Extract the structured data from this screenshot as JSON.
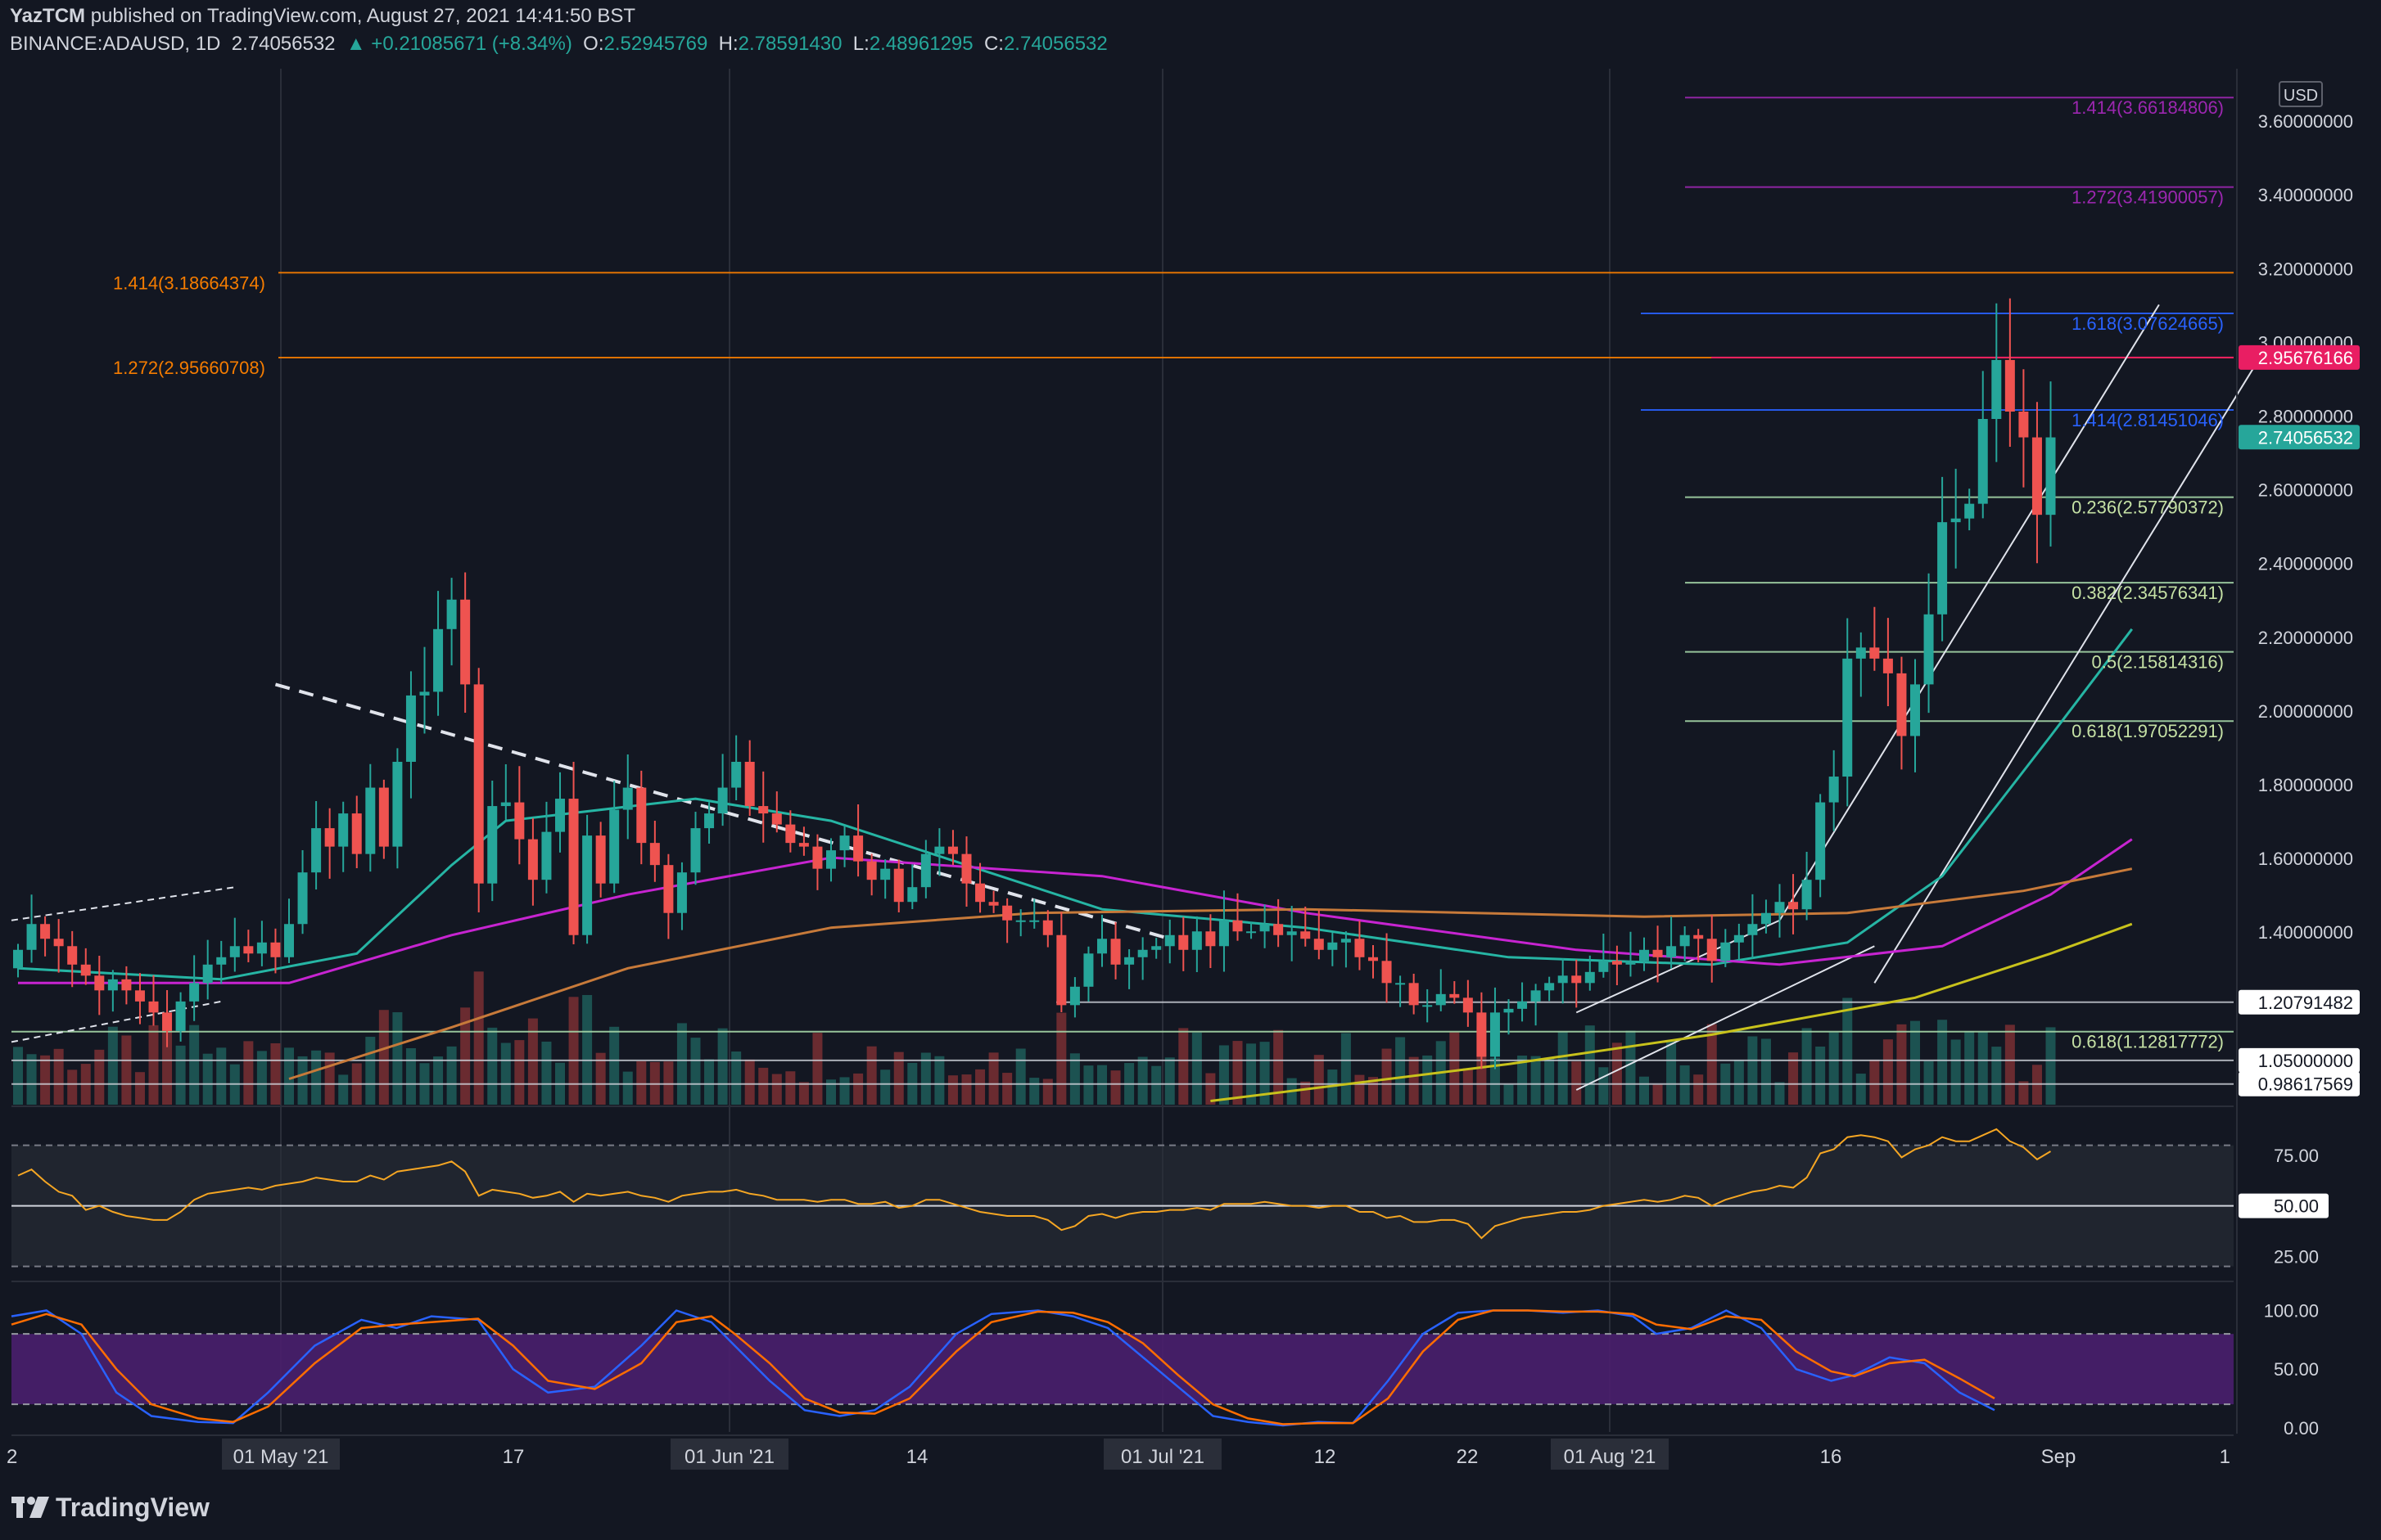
{
  "header": {
    "author": "YazTCM",
    "published": "published on TradingView.com, August 27, 2021 14:41:50 BST",
    "symbol": "BINANCE:ADAUSD, 1D",
    "last": "2.74056532",
    "change": "▲ +0.21085671 (+8.34%)",
    "o_label": "O:",
    "o": "2.52945769",
    "h_label": "H:",
    "h": "2.78591430",
    "l_label": "L:",
    "l": "2.48961295",
    "c_label": "C:",
    "c": "2.74056532"
  },
  "brand": "TradingView",
  "colors": {
    "background": "#131722",
    "up": "#26a69a",
    "down": "#ef5350",
    "ema20": "#26b5a4",
    "ema50": "#c724d1",
    "ema100": "#c77a3a",
    "ema200": "#c8c21c",
    "fib_ext_orange": "#f57c00",
    "fib_ext_purple": "#9c27b0",
    "fib_ext_blue": "#2962ff",
    "fib_retrace": "#a5d6a7",
    "rsi": "#f5a623",
    "stoch_k": "#2962ff",
    "stoch_d": "#ff6d00",
    "stoch_band": "#4a1f6e"
  },
  "chart_data": [
    {
      "type": "candlestick",
      "title": "ADAUSD 1D",
      "y_axis_unit": "USD",
      "ylim": [
        0.93,
        3.74
      ],
      "y_ticks": [
        "3.60000000",
        "3.40000000",
        "3.20000000",
        "3.00000000",
        "2.80000000",
        "2.60000000",
        "2.40000000",
        "2.20000000",
        "2.00000000",
        "1.80000000",
        "1.60000000",
        "1.40000000"
      ],
      "x_ticks": [
        "01 May '21",
        "17",
        "01 Jun '21",
        "14",
        "01 Jul '21",
        "12",
        "22",
        "01 Aug '21",
        "16",
        "Sep"
      ],
      "x_ticks_partial": [
        "2",
        "1"
      ],
      "price_labels": [
        {
          "text": "2.95676166",
          "value": 2.95676166,
          "style": "magenta"
        },
        {
          "text": "2.74056532",
          "value": 2.74056532,
          "style": "green"
        },
        {
          "text": "1.20791482",
          "value": 1.20791482,
          "style": "white"
        },
        {
          "text": "1.05000000",
          "value": 1.05,
          "style": "white"
        },
        {
          "text": "0.98617569",
          "value": 0.98617569,
          "style": "white"
        }
      ],
      "fib_levels": [
        {
          "label": "1.414(3.66184806)",
          "value": 3.66184806,
          "color": "purple"
        },
        {
          "label": "1.272(3.41900057)",
          "value": 3.41900057,
          "color": "purple"
        },
        {
          "label": "1.414(3.18664374)",
          "value": 3.18664374,
          "color": "orange"
        },
        {
          "label": "1.618(3.07624665)",
          "value": 3.07624665,
          "color": "blue"
        },
        {
          "label": "1.272(2.95660708)",
          "value": 2.95660708,
          "color": "orange"
        },
        {
          "label": "1.414(2.81451046)",
          "value": 2.81451046,
          "color": "blue"
        },
        {
          "label": "0.236(2.57790372)",
          "value": 2.57790372,
          "color": "green"
        },
        {
          "label": "0.382(2.34576341)",
          "value": 2.34576341,
          "color": "green"
        },
        {
          "label": "0.5(2.15814316)",
          "value": 2.15814316,
          "color": "green"
        },
        {
          "label": "0.618(1.97052291)",
          "value": 1.97052291,
          "color": "green"
        },
        {
          "label": "0.618(1.12817772)",
          "value": 1.12817772,
          "color": "green"
        }
      ],
      "closes": [
        1.35,
        1.42,
        1.38,
        1.36,
        1.31,
        1.28,
        1.24,
        1.27,
        1.24,
        1.21,
        1.18,
        1.13,
        1.21,
        1.26,
        1.31,
        1.33,
        1.36,
        1.34,
        1.37,
        1.33,
        1.42,
        1.56,
        1.68,
        1.63,
        1.72,
        1.61,
        1.79,
        1.63,
        1.86,
        2.04,
        2.05,
        2.22,
        2.3,
        2.07,
        1.53,
        1.74,
        1.75,
        1.65,
        1.54,
        1.67,
        1.76,
        1.39,
        1.66,
        1.53,
        1.73,
        1.79,
        1.64,
        1.58,
        1.45,
        1.56,
        1.68,
        1.72,
        1.79,
        1.86,
        1.74,
        1.72,
        1.69,
        1.64,
        1.63,
        1.57,
        1.62,
        1.66,
        1.59,
        1.54,
        1.57,
        1.48,
        1.52,
        1.61,
        1.63,
        1.61,
        1.53,
        1.48,
        1.47,
        1.43,
        1.43,
        1.43,
        1.39,
        1.2,
        1.25,
        1.34,
        1.38,
        1.31,
        1.33,
        1.35,
        1.36,
        1.39,
        1.35,
        1.4,
        1.36,
        1.43,
        1.4,
        1.4,
        1.42,
        1.39,
        1.4,
        1.38,
        1.35,
        1.37,
        1.38,
        1.33,
        1.32,
        1.26,
        1.26,
        1.2,
        1.2,
        1.23,
        1.22,
        1.18,
        1.06,
        1.18,
        1.19,
        1.21,
        1.24,
        1.26,
        1.28,
        1.26,
        1.29,
        1.32,
        1.31,
        1.32,
        1.35,
        1.33,
        1.36,
        1.39,
        1.38,
        1.32,
        1.37,
        1.39,
        1.42,
        1.45,
        1.48,
        1.46,
        1.54,
        1.75,
        1.82,
        2.14,
        2.17,
        2.14,
        2.1,
        1.93,
        2.07,
        2.26,
        2.51,
        2.52,
        2.56,
        2.79,
        2.95,
        2.81,
        2.74,
        2.53,
        2.74
      ],
      "ema_series": [
        {
          "name": "EMA 20",
          "color_key": "ema20",
          "values": [
            [
              0,
              1.3
            ],
            [
              15,
              1.27
            ],
            [
              25,
              1.34
            ],
            [
              32,
              1.58
            ],
            [
              36,
              1.7
            ],
            [
              50,
              1.76
            ],
            [
              60,
              1.7
            ],
            [
              70,
              1.58
            ],
            [
              80,
              1.46
            ],
            [
              95,
              1.41
            ],
            [
              110,
              1.33
            ],
            [
              125,
              1.31
            ],
            [
              135,
              1.37
            ],
            [
              142,
              1.55
            ],
            [
              150,
              1.93
            ],
            [
              156,
              2.22
            ]
          ]
        },
        {
          "name": "EMA 50",
          "color_key": "ema50",
          "values": [
            [
              0,
              1.26
            ],
            [
              20,
              1.26
            ],
            [
              32,
              1.39
            ],
            [
              45,
              1.5
            ],
            [
              60,
              1.6
            ],
            [
              80,
              1.55
            ],
            [
              95,
              1.45
            ],
            [
              115,
              1.35
            ],
            [
              130,
              1.31
            ],
            [
              142,
              1.36
            ],
            [
              150,
              1.5
            ],
            [
              156,
              1.65
            ]
          ]
        },
        {
          "name": "EMA 100",
          "color_key": "ema100",
          "values": [
            [
              20,
              1.0
            ],
            [
              32,
              1.14
            ],
            [
              45,
              1.3
            ],
            [
              60,
              1.41
            ],
            [
              75,
              1.45
            ],
            [
              95,
              1.46
            ],
            [
              120,
              1.44
            ],
            [
              135,
              1.45
            ],
            [
              148,
              1.51
            ],
            [
              156,
              1.57
            ]
          ]
        },
        {
          "name": "EMA 200",
          "color_key": "ema200",
          "values": [
            [
              88,
              0.94
            ],
            [
              110,
              1.04
            ],
            [
              125,
              1.12
            ],
            [
              140,
              1.22
            ],
            [
              150,
              1.34
            ],
            [
              156,
              1.42
            ]
          ]
        }
      ]
    },
    {
      "type": "line",
      "title": "RSI",
      "y_ticks": [
        "75.00",
        "50.00",
        "25.00"
      ],
      "ylim": [
        15,
        92
      ],
      "levels": [
        80,
        50,
        20
      ],
      "values": [
        65,
        68,
        62,
        57,
        55,
        48,
        50,
        47,
        45,
        44,
        43,
        43,
        47,
        53,
        56,
        57,
        58,
        59,
        58,
        60,
        61,
        62,
        64,
        63,
        62,
        62,
        65,
        63,
        67,
        68,
        69,
        70,
        72,
        67,
        55,
        58,
        57,
        56,
        54,
        55,
        57,
        52,
        56,
        55,
        56,
        57,
        55,
        54,
        52,
        55,
        56,
        57,
        57,
        58,
        56,
        55,
        53,
        53,
        53,
        52,
        53,
        53,
        51,
        51,
        52,
        49,
        50,
        53,
        53,
        51,
        49,
        47,
        46,
        45,
        45,
        45,
        43,
        38,
        40,
        45,
        46,
        44,
        46,
        47,
        47,
        48,
        48,
        49,
        48,
        51,
        51,
        51,
        52,
        51,
        50,
        50,
        49,
        50,
        50,
        47,
        47,
        44,
        45,
        42,
        42,
        43,
        43,
        41,
        34,
        40,
        42,
        44,
        45,
        46,
        47,
        47,
        48,
        50,
        51,
        52,
        53,
        52,
        53,
        55,
        54,
        50,
        53,
        55,
        57,
        58,
        60,
        59,
        64,
        76,
        78,
        84,
        85,
        84,
        82,
        74,
        78,
        80,
        84,
        82,
        82,
        85,
        88,
        82,
        79,
        73,
        77
      ]
    },
    {
      "type": "line",
      "title": "Stochastic RSI",
      "y_ticks": [
        "100.00",
        "50.00",
        "0.00"
      ],
      "ylim": [
        -5,
        108
      ],
      "band": [
        20,
        80
      ],
      "series": [
        {
          "name": "K",
          "color_key": "stoch_k",
          "values": [
            [
              0,
              95
            ],
            [
              3,
              100
            ],
            [
              6,
              80
            ],
            [
              9,
              30
            ],
            [
              12,
              10
            ],
            [
              16,
              5
            ],
            [
              19,
              4
            ],
            [
              22,
              30
            ],
            [
              26,
              70
            ],
            [
              30,
              92
            ],
            [
              33,
              85
            ],
            [
              36,
              95
            ],
            [
              40,
              92
            ],
            [
              43,
              50
            ],
            [
              46,
              30
            ],
            [
              50,
              35
            ],
            [
              54,
              70
            ],
            [
              57,
              100
            ],
            [
              60,
              90
            ],
            [
              62,
              70
            ],
            [
              65,
              40
            ],
            [
              68,
              15
            ],
            [
              71,
              10
            ],
            [
              74,
              15
            ],
            [
              77,
              35
            ],
            [
              81,
              80
            ],
            [
              84,
              97
            ],
            [
              88,
              100
            ],
            [
              91,
              95
            ],
            [
              94,
              85
            ],
            [
              97,
              60
            ],
            [
              100,
              35
            ],
            [
              103,
              10
            ],
            [
              106,
              5
            ],
            [
              109,
              2
            ],
            [
              112,
              5
            ],
            [
              115,
              4
            ],
            [
              118,
              40
            ],
            [
              121,
              80
            ],
            [
              124,
              98
            ],
            [
              127,
              100
            ],
            [
              130,
              100
            ],
            [
              133,
              98
            ],
            [
              136,
              100
            ],
            [
              139,
              95
            ],
            [
              141,
              80
            ],
            [
              144,
              85
            ],
            [
              147,
              100
            ],
            [
              150,
              85
            ],
            [
              153,
              50
            ],
            [
              156,
              40
            ],
            [
              158,
              45
            ],
            [
              161,
              60
            ],
            [
              164,
              55
            ],
            [
              167,
              30
            ],
            [
              170,
              15
            ]
          ]
        },
        {
          "name": "D",
          "color_key": "stoch_d",
          "values": [
            [
              0,
              88
            ],
            [
              3,
              97
            ],
            [
              6,
              88
            ],
            [
              9,
              50
            ],
            [
              12,
              20
            ],
            [
              16,
              8
            ],
            [
              19,
              5
            ],
            [
              22,
              18
            ],
            [
              26,
              55
            ],
            [
              30,
              85
            ],
            [
              33,
              88
            ],
            [
              36,
              90
            ],
            [
              40,
              93
            ],
            [
              43,
              70
            ],
            [
              46,
              40
            ],
            [
              50,
              33
            ],
            [
              54,
              55
            ],
            [
              57,
              90
            ],
            [
              60,
              95
            ],
            [
              62,
              80
            ],
            [
              65,
              55
            ],
            [
              68,
              25
            ],
            [
              71,
              13
            ],
            [
              74,
              12
            ],
            [
              77,
              25
            ],
            [
              81,
              65
            ],
            [
              84,
              90
            ],
            [
              88,
              99
            ],
            [
              91,
              98
            ],
            [
              94,
              90
            ],
            [
              97,
              72
            ],
            [
              100,
              45
            ],
            [
              103,
              20
            ],
            [
              106,
              8
            ],
            [
              109,
              3
            ],
            [
              112,
              4
            ],
            [
              115,
              4
            ],
            [
              118,
              25
            ],
            [
              121,
              65
            ],
            [
              124,
              92
            ],
            [
              127,
              100
            ],
            [
              130,
              100
            ],
            [
              133,
              99
            ],
            [
              136,
              99
            ],
            [
              139,
              97
            ],
            [
              141,
              88
            ],
            [
              144,
              84
            ],
            [
              147,
              95
            ],
            [
              150,
              92
            ],
            [
              153,
              65
            ],
            [
              156,
              48
            ],
            [
              158,
              44
            ],
            [
              161,
              55
            ],
            [
              164,
              58
            ],
            [
              167,
              42
            ],
            [
              170,
              25
            ]
          ]
        }
      ]
    }
  ]
}
